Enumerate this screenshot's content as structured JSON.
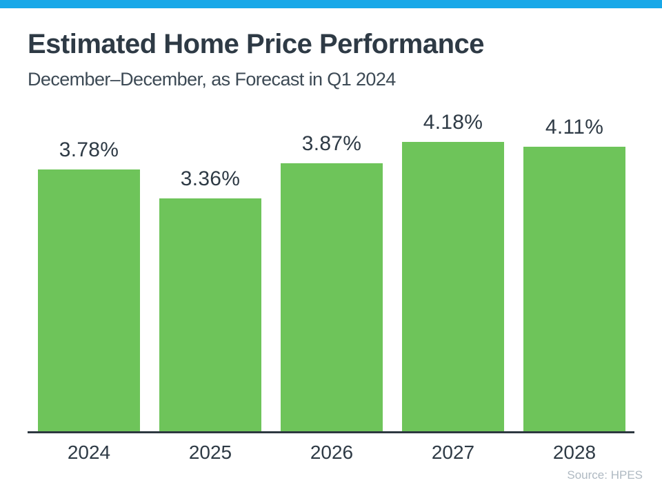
{
  "header": {
    "title": "Estimated Home Price Performance",
    "subtitle": "December–December, as Forecast in Q1 2024"
  },
  "footer": {
    "source": "Source: HPES"
  },
  "colors": {
    "accent_bar": "#18A8E8",
    "bar_fill": "#6EC45A",
    "text_dark": "#2E3A45",
    "subtitle_text": "#3D4A55",
    "axis": "#2D3840",
    "source_text": "#AFB9C2"
  },
  "chart_data": {
    "type": "bar",
    "title": "Estimated Home Price Performance",
    "subtitle": "December–December, as Forecast in Q1 2024",
    "categories": [
      "2024",
      "2025",
      "2026",
      "2027",
      "2028"
    ],
    "values": [
      3.78,
      3.36,
      3.87,
      4.18,
      4.11
    ],
    "labels": [
      "3.78%",
      "3.36%",
      "3.87%",
      "4.18%",
      "4.11%"
    ],
    "xlabel": "",
    "ylabel": "",
    "ylim": [
      0,
      5.8
    ],
    "grid": false,
    "legend": false,
    "value_label_position": "above",
    "source": "Source: HPES"
  }
}
